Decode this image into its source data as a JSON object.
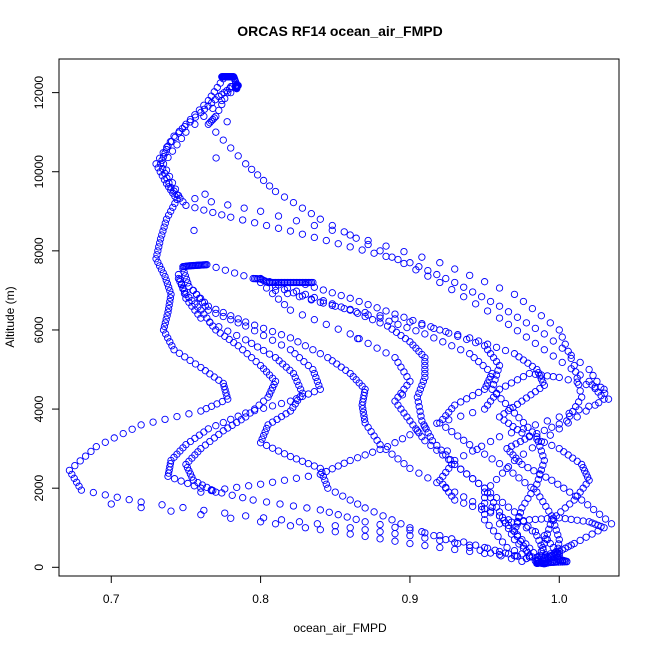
{
  "chart_data": {
    "type": "scatter",
    "title": "ORCAS RF14 ocean_air_FMPD",
    "xlabel": "ocean_air_FMPD",
    "ylabel": "Altitude (m)",
    "xlim": [
      0.665,
      1.04
    ],
    "ylim": [
      -220,
      12850
    ],
    "x_ticks": [
      "0.7",
      "0.8",
      "0.9",
      "1.0"
    ],
    "x_tick_values": [
      0.7,
      0.8,
      0.9,
      1.0
    ],
    "y_ticks": [
      "0",
      "2000",
      "4000",
      "6000",
      "8000",
      "10000",
      "12000"
    ],
    "y_tick_values": [
      0,
      2000,
      4000,
      6000,
      8000,
      10000,
      12000
    ],
    "grid": false,
    "legend": "none",
    "marker": "open-circle",
    "point_color": "#0000ff",
    "series": [
      {
        "points": [
          [
            0.781,
            12150
          ],
          [
            0.772,
            11900
          ],
          [
            0.76,
            11500
          ],
          [
            0.742,
            10900
          ],
          [
            0.73,
            10200
          ],
          [
            0.737,
            9700
          ],
          [
            0.744,
            9300
          ],
          [
            0.737,
            8800
          ],
          [
            0.733,
            8300
          ],
          [
            0.73,
            7800
          ],
          [
            0.736,
            7350
          ],
          [
            0.74,
            6900
          ],
          [
            0.738,
            6450
          ],
          [
            0.735,
            6000
          ],
          [
            0.742,
            5500
          ],
          [
            0.76,
            5050
          ],
          [
            0.775,
            4650
          ],
          [
            0.778,
            4250
          ],
          [
            0.76,
            3950
          ],
          [
            0.72,
            3600
          ],
          [
            0.69,
            3050
          ],
          [
            0.672,
            2450
          ],
          [
            0.68,
            1950
          ],
          [
            0.72,
            1650
          ],
          [
            0.79,
            1300
          ],
          [
            0.85,
            1050
          ],
          [
            0.9,
            800
          ],
          [
            0.95,
            500
          ],
          [
            0.985,
            150
          ]
        ]
      },
      {
        "points": [
          [
            0.775,
            12350
          ],
          [
            0.765,
            11800
          ],
          [
            0.75,
            11200
          ],
          [
            0.738,
            10650
          ],
          [
            0.733,
            10200
          ],
          [
            0.74,
            9600
          ],
          [
            0.75,
            9150
          ],
          [
            0.78,
            8850
          ],
          [
            0.82,
            8500
          ],
          [
            0.86,
            8100
          ],
          [
            0.9,
            7700
          ],
          [
            0.93,
            7200
          ],
          [
            0.96,
            6600
          ],
          [
            0.99,
            5900
          ],
          [
            1.02,
            5000
          ],
          [
            1.033,
            4250
          ],
          [
            1.0,
            3800
          ],
          [
            0.96,
            3300
          ],
          [
            0.93,
            2700
          ],
          [
            0.92,
            2200
          ],
          [
            0.93,
            1700
          ],
          [
            0.96,
            1300
          ],
          [
            0.99,
            800
          ],
          [
            1.0,
            300
          ]
        ]
      },
      {
        "points": [
          [
            0.78,
            12000
          ],
          [
            0.75,
            11000
          ],
          [
            0.735,
            10200
          ],
          [
            0.745,
            9400
          ],
          [
            0.8,
            9000
          ],
          [
            0.86,
            8400
          ],
          [
            0.92,
            7700
          ],
          [
            0.97,
            6900
          ],
          [
            1.0,
            6000
          ],
          [
            1.01,
            5100
          ],
          [
            1.015,
            4300
          ],
          [
            1.005,
            3700
          ],
          [
            0.98,
            3300
          ],
          [
            0.965,
            3000
          ],
          [
            0.975,
            2600
          ],
          [
            0.995,
            2200
          ],
          [
            1.015,
            1700
          ],
          [
            1.035,
            1100
          ]
        ]
      },
      {
        "points": [
          [
            0.748,
            7550
          ],
          [
            0.752,
            7100
          ],
          [
            0.765,
            6600
          ],
          [
            0.79,
            6200
          ],
          [
            0.82,
            5800
          ],
          [
            0.845,
            5300
          ],
          [
            0.86,
            4900
          ],
          [
            0.87,
            4500
          ],
          [
            0.868,
            4100
          ],
          [
            0.87,
            3650
          ],
          [
            0.88,
            3100
          ],
          [
            0.9,
            2500
          ],
          [
            0.93,
            1900
          ],
          [
            0.96,
            1300
          ],
          [
            0.975,
            700
          ],
          [
            0.988,
            150
          ]
        ]
      },
      {
        "points": [
          [
            0.745,
            7400
          ],
          [
            0.75,
            6800
          ],
          [
            0.76,
            6300
          ],
          [
            0.79,
            5750
          ],
          [
            0.81,
            5300
          ],
          [
            0.822,
            4900
          ],
          [
            0.828,
            4400
          ],
          [
            0.82,
            3950
          ],
          [
            0.805,
            3600
          ],
          [
            0.8,
            3150
          ],
          [
            0.82,
            2800
          ],
          [
            0.84,
            2500
          ],
          [
            0.845,
            2000
          ],
          [
            0.87,
            1500
          ],
          [
            0.9,
            1000
          ],
          [
            0.94,
            500
          ],
          [
            0.975,
            150
          ]
        ]
      },
      {
        "points": [
          [
            0.755,
            7000
          ],
          [
            0.765,
            6500
          ],
          [
            0.79,
            6100
          ],
          [
            0.82,
            5500
          ],
          [
            0.835,
            5000
          ],
          [
            0.84,
            4500
          ],
          [
            0.82,
            4200
          ],
          [
            0.79,
            3900
          ],
          [
            0.765,
            3500
          ],
          [
            0.75,
            3100
          ],
          [
            0.74,
            2700
          ],
          [
            0.738,
            2300
          ],
          [
            0.76,
            2000
          ],
          [
            0.795,
            1700
          ],
          [
            0.84,
            1450
          ],
          [
            0.87,
            1150
          ],
          [
            0.92,
            800
          ],
          [
            0.96,
            400
          ],
          [
            0.99,
            100
          ]
        ]
      },
      {
        "points": [
          [
            0.745,
            7300
          ],
          [
            0.75,
            6900
          ],
          [
            0.76,
            6500
          ],
          [
            0.77,
            6000
          ],
          [
            0.785,
            5600
          ],
          [
            0.8,
            5100
          ],
          [
            0.81,
            4700
          ],
          [
            0.805,
            4300
          ],
          [
            0.79,
            3800
          ],
          [
            0.775,
            3450
          ],
          [
            0.76,
            3000
          ],
          [
            0.75,
            2600
          ],
          [
            0.755,
            2200
          ],
          [
            0.77,
            1900
          ]
        ]
      },
      {
        "points": [
          [
            0.8,
            7300
          ],
          [
            0.83,
            6900
          ],
          [
            0.86,
            6500
          ],
          [
            0.885,
            6100
          ],
          [
            0.9,
            5700
          ],
          [
            0.91,
            5300
          ],
          [
            0.91,
            4800
          ],
          [
            0.905,
            4300
          ],
          [
            0.908,
            3700
          ],
          [
            0.915,
            3200
          ],
          [
            0.93,
            2600
          ],
          [
            0.95,
            2000
          ],
          [
            0.97,
            1400
          ],
          [
            0.985,
            800
          ],
          [
            0.992,
            200
          ]
        ]
      },
      {
        "points": [
          [
            0.81,
            7100
          ],
          [
            0.84,
            6700
          ],
          [
            0.88,
            6300
          ],
          [
            0.91,
            5900
          ],
          [
            0.94,
            5400
          ],
          [
            0.955,
            4900
          ],
          [
            0.95,
            4500
          ],
          [
            0.93,
            4100
          ],
          [
            0.92,
            3650
          ],
          [
            0.94,
            3100
          ],
          [
            0.965,
            2500
          ],
          [
            0.985,
            1900
          ],
          [
            0.995,
            1300
          ],
          [
            1.0,
            700
          ],
          [
            0.998,
            150
          ]
        ]
      },
      {
        "points": [
          [
            0.81,
            7000
          ],
          [
            0.85,
            6600
          ],
          [
            0.9,
            6200
          ],
          [
            0.94,
            5800
          ],
          [
            0.97,
            5400
          ],
          [
            0.985,
            5000
          ],
          [
            0.99,
            4600
          ],
          [
            0.975,
            4200
          ],
          [
            0.96,
            3800
          ],
          [
            0.975,
            3400
          ],
          [
            1.0,
            3000
          ],
          [
            1.015,
            2600
          ],
          [
            1.02,
            2200
          ],
          [
            1.01,
            1700
          ],
          [
            0.995,
            1200
          ],
          [
            0.99,
            600
          ],
          [
            0.985,
            100
          ]
        ]
      },
      {
        "points": [
          [
            0.78,
            12150
          ],
          [
            0.77,
            11400
          ],
          [
            0.765,
            11200
          ],
          [
            0.79,
            10200
          ],
          [
            0.81,
            9500
          ],
          [
            0.84,
            8800
          ],
          [
            0.88,
            8000
          ],
          [
            0.92,
            7200
          ],
          [
            0.96,
            6300
          ],
          [
            0.99,
            5500
          ],
          [
            1.02,
            4700
          ],
          [
            1.03,
            4250
          ],
          [
            1.0,
            3500
          ],
          [
            0.97,
            2700
          ],
          [
            0.95,
            1900
          ],
          [
            0.95,
            1200
          ],
          [
            0.965,
            500
          ],
          [
            0.99,
            100
          ]
        ]
      },
      {
        "points": [
          [
            0.83,
            7150
          ],
          [
            0.86,
            6800
          ],
          [
            0.89,
            6400
          ],
          [
            0.92,
            6000
          ],
          [
            0.95,
            5600
          ],
          [
            0.96,
            5100
          ],
          [
            0.955,
            4500
          ],
          [
            0.97,
            3900
          ],
          [
            0.985,
            3300
          ],
          [
            0.99,
            2700
          ],
          [
            0.985,
            2100
          ],
          [
            0.975,
            1500
          ],
          [
            0.97,
            900
          ],
          [
            0.98,
            300
          ]
        ]
      },
      {
        "points": [
          [
            0.8,
            7200
          ],
          [
            0.82,
            6500
          ],
          [
            0.86,
            5900
          ],
          [
            0.89,
            5300
          ],
          [
            0.9,
            4700
          ],
          [
            0.89,
            4200
          ],
          [
            0.9,
            3700
          ],
          [
            0.91,
            3200
          ],
          [
            0.93,
            2600
          ],
          [
            0.95,
            2000
          ],
          [
            0.96,
            1400
          ],
          [
            0.97,
            700
          ],
          [
            0.985,
            150
          ]
        ]
      },
      {
        "points": [
          [
            0.7,
            1600
          ],
          [
            0.8,
            1150
          ],
          [
            0.85,
            900
          ],
          [
            0.9,
            600
          ],
          [
            0.95,
            350
          ],
          [
            1.0,
            200
          ],
          [
            1.005,
            150
          ]
        ]
      },
      {
        "points": [
          [
            0.76,
            1900
          ],
          [
            0.8,
            2100
          ],
          [
            0.84,
            2350
          ],
          [
            0.86,
            2700
          ],
          [
            0.885,
            3050
          ],
          [
            0.91,
            3550
          ],
          [
            0.95,
            4000
          ],
          [
            0.96,
            4500
          ],
          [
            0.98,
            4900
          ],
          [
            1.0,
            4800
          ],
          [
            1.03,
            4500
          ]
        ]
      },
      {
        "points": [
          [
            0.96,
            1100
          ],
          [
            0.98,
            1200
          ],
          [
            1.0,
            1250
          ],
          [
            1.02,
            1150
          ],
          [
            1.03,
            1000
          ],
          [
            1.01,
            600
          ],
          [
            1.0,
            400
          ],
          [
            0.985,
            250
          ]
        ]
      },
      {
        "points": [
          [
            0.774,
            12400
          ],
          [
            0.776,
            12400
          ],
          [
            0.778,
            12400
          ],
          [
            0.78,
            12400
          ],
          [
            0.782,
            12400
          ],
          [
            0.784,
            12200
          ],
          [
            0.784,
            12100
          ],
          [
            0.783,
            12150
          ],
          [
            0.785,
            12180
          ],
          [
            0.748,
            7600
          ],
          [
            0.752,
            7620
          ],
          [
            0.756,
            7630
          ],
          [
            0.76,
            7640
          ],
          [
            0.764,
            7650
          ],
          [
            0.795,
            7300
          ],
          [
            0.8,
            7290
          ],
          [
            0.805,
            7200
          ],
          [
            0.81,
            7200
          ],
          [
            0.815,
            7200
          ],
          [
            0.82,
            7200
          ],
          [
            0.825,
            7200
          ],
          [
            0.83,
            7200
          ],
          [
            0.835,
            7200
          ],
          [
            0.985,
            100
          ],
          [
            0.987,
            110
          ],
          [
            0.99,
            90
          ],
          [
            0.993,
            120
          ],
          [
            0.998,
            130
          ],
          [
            1.005,
            140
          ],
          [
            0.99,
            250
          ],
          [
            0.995,
            300
          ],
          [
            1.0,
            350
          ]
        ]
      }
    ]
  }
}
